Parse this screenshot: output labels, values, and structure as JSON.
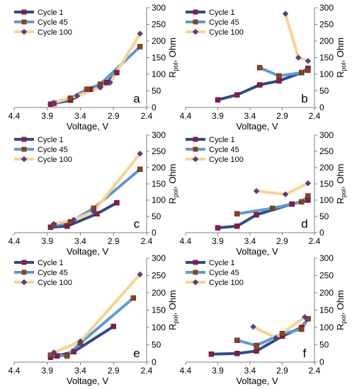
{
  "colors": {
    "cycle1": "#2E4A8C",
    "cycle45": "#5B9BD5",
    "cycle100": "#F9D38C",
    "marker1": "#8B1A4A",
    "marker45": "#8B4513",
    "marker100": "#5B3C88",
    "axis": "#7F7F7F"
  },
  "chart_data": [
    {
      "panel": "a",
      "type": "line",
      "xlabel": "Voltage, V",
      "ylabel": "R_pol, Ohm",
      "xlim": [
        4.4,
        2.4
      ],
      "ylim": [
        0,
        300
      ],
      "xticks": [
        "4.4",
        "3.9",
        "3.4",
        "2.9",
        "2.4"
      ],
      "yticks": [
        "0",
        "50",
        "100",
        "150",
        "200",
        "250",
        "300"
      ],
      "legend": [
        "Cycle 1",
        "Cycle 45",
        "Cycle 100"
      ],
      "series": [
        {
          "name": "Cycle 1",
          "x": [
            3.85,
            3.55,
            3.25,
            3.0,
            2.85
          ],
          "y": [
            10,
            22,
            55,
            75,
            105
          ]
        },
        {
          "name": "Cycle 45",
          "x": [
            3.8,
            3.55,
            3.3,
            3.1,
            2.5
          ],
          "y": [
            12,
            28,
            55,
            70,
            183
          ]
        },
        {
          "name": "Cycle 100",
          "x": [
            3.8,
            3.45,
            3.1,
            2.95,
            2.5
          ],
          "y": [
            15,
            35,
            60,
            75,
            222
          ]
        }
      ]
    },
    {
      "panel": "b",
      "type": "line",
      "xlabel": "Voltage, V",
      "ylabel": "R_pol, Ohm",
      "xlim": [
        4.4,
        2.4
      ],
      "ylim": [
        0,
        300
      ],
      "xticks": [
        "4.4",
        "3.9",
        "3.4",
        "2.9",
        "2.4"
      ],
      "yticks": [
        "0",
        "50",
        "100",
        "150",
        "200",
        "250",
        "300"
      ],
      "legend": [
        "Cycle 1",
        "Cycle 45",
        "Cycle 100"
      ],
      "series": [
        {
          "name": "Cycle 1",
          "x": [
            3.9,
            3.6,
            3.25,
            2.95,
            2.6,
            2.5
          ],
          "y": [
            23,
            38,
            68,
            80,
            105,
            118
          ]
        },
        {
          "name": "Cycle 45",
          "x": [
            3.25,
            2.95,
            2.6,
            2.5
          ],
          "y": [
            120,
            95,
            105,
            112
          ]
        },
        {
          "name": "Cycle 100",
          "x": [
            2.85,
            2.65,
            2.5
          ],
          "y": [
            282,
            150,
            140
          ]
        }
      ]
    },
    {
      "panel": "c",
      "type": "line",
      "xlabel": "Voltage, V",
      "ylabel": "R_pol, Ohm",
      "xlim": [
        4.4,
        2.4
      ],
      "ylim": [
        0,
        300
      ],
      "xticks": [
        "4.4",
        "3.9",
        "3.4",
        "2.9",
        "2.4"
      ],
      "yticks": [
        "0",
        "50",
        "100",
        "150",
        "200",
        "250",
        "300"
      ],
      "legend": [
        "Cycle 1",
        "Cycle 45",
        "Cycle 100"
      ],
      "series": [
        {
          "name": "Cycle 1",
          "x": [
            3.85,
            3.6,
            3.15,
            2.85
          ],
          "y": [
            17,
            20,
            58,
            92
          ]
        },
        {
          "name": "Cycle 45",
          "x": [
            3.8,
            3.55,
            3.2,
            2.5
          ],
          "y": [
            22,
            33,
            75,
            195
          ]
        },
        {
          "name": "Cycle 100",
          "x": [
            3.8,
            3.5,
            3.2,
            2.5
          ],
          "y": [
            27,
            40,
            65,
            243
          ]
        }
      ]
    },
    {
      "panel": "d",
      "type": "line",
      "xlabel": "Voltage, V",
      "ylabel": "R_pol, Ohm",
      "xlim": [
        4.4,
        2.4
      ],
      "ylim": [
        0,
        300
      ],
      "xticks": [
        "4.4",
        "3.9",
        "3.4",
        "2.9",
        "2.4"
      ],
      "yticks": [
        "0",
        "50",
        "100",
        "150",
        "200",
        "250",
        "300"
      ],
      "legend": [
        "Cycle 1",
        "Cycle 45",
        "Cycle 100"
      ],
      "series": [
        {
          "name": "Cycle 1",
          "x": [
            3.9,
            3.6,
            3.3,
            2.75,
            2.5
          ],
          "y": [
            15,
            20,
            55,
            88,
            100
          ]
        },
        {
          "name": "Cycle 45",
          "x": [
            3.6,
            3.05,
            2.6,
            2.5
          ],
          "y": [
            58,
            75,
            95,
            113
          ]
        },
        {
          "name": "Cycle 100",
          "x": [
            3.3,
            2.85,
            2.5
          ],
          "y": [
            128,
            118,
            152
          ]
        }
      ]
    },
    {
      "panel": "e",
      "type": "line",
      "xlabel": "Voltage, V",
      "ylabel": "R_pol, Ohm",
      "xlim": [
        4.4,
        2.4
      ],
      "ylim": [
        0,
        300
      ],
      "xticks": [
        "4.4",
        "3.9",
        "3.4",
        "2.9",
        "2.4"
      ],
      "yticks": [
        "0",
        "50",
        "100",
        "150",
        "200",
        "250",
        "300"
      ],
      "legend": [
        "Cycle 1",
        "Cycle 45",
        "Cycle 100"
      ],
      "series": [
        {
          "name": "Cycle 1",
          "x": [
            3.85,
            3.75,
            3.5,
            2.9
          ],
          "y": [
            14,
            18,
            30,
            103
          ]
        },
        {
          "name": "Cycle 45",
          "x": [
            3.85,
            3.6,
            3.4,
            2.6
          ],
          "y": [
            20,
            18,
            55,
            185
          ]
        },
        {
          "name": "Cycle 100",
          "x": [
            3.8,
            3.4,
            2.5
          ],
          "y": [
            28,
            60,
            253
          ]
        }
      ]
    },
    {
      "panel": "f",
      "type": "line",
      "xlabel": "Voltage, V",
      "ylabel": "R_pol, Ohm",
      "xlim": [
        4.4,
        2.4
      ],
      "ylim": [
        0,
        300
      ],
      "xticks": [
        "4.4",
        "3.9",
        "3.4",
        "2.9",
        "2.4"
      ],
      "yticks": [
        "0",
        "50",
        "100",
        "150",
        "200",
        "250",
        "300"
      ],
      "legend": [
        "Cycle 1",
        "Cycle 45",
        "Cycle 100"
      ],
      "series": [
        {
          "name": "Cycle 1",
          "x": [
            4.0,
            3.6,
            3.3,
            2.9,
            2.6,
            2.5
          ],
          "y": [
            23,
            25,
            32,
            75,
            100,
            125
          ]
        },
        {
          "name": "Cycle 45",
          "x": [
            3.6,
            3.3,
            2.9,
            2.6,
            2.5
          ],
          "y": [
            63,
            48,
            82,
            95,
            125
          ]
        },
        {
          "name": "Cycle 100",
          "x": [
            3.35,
            3.0,
            2.55
          ],
          "y": [
            102,
            70,
            130
          ]
        }
      ]
    }
  ]
}
